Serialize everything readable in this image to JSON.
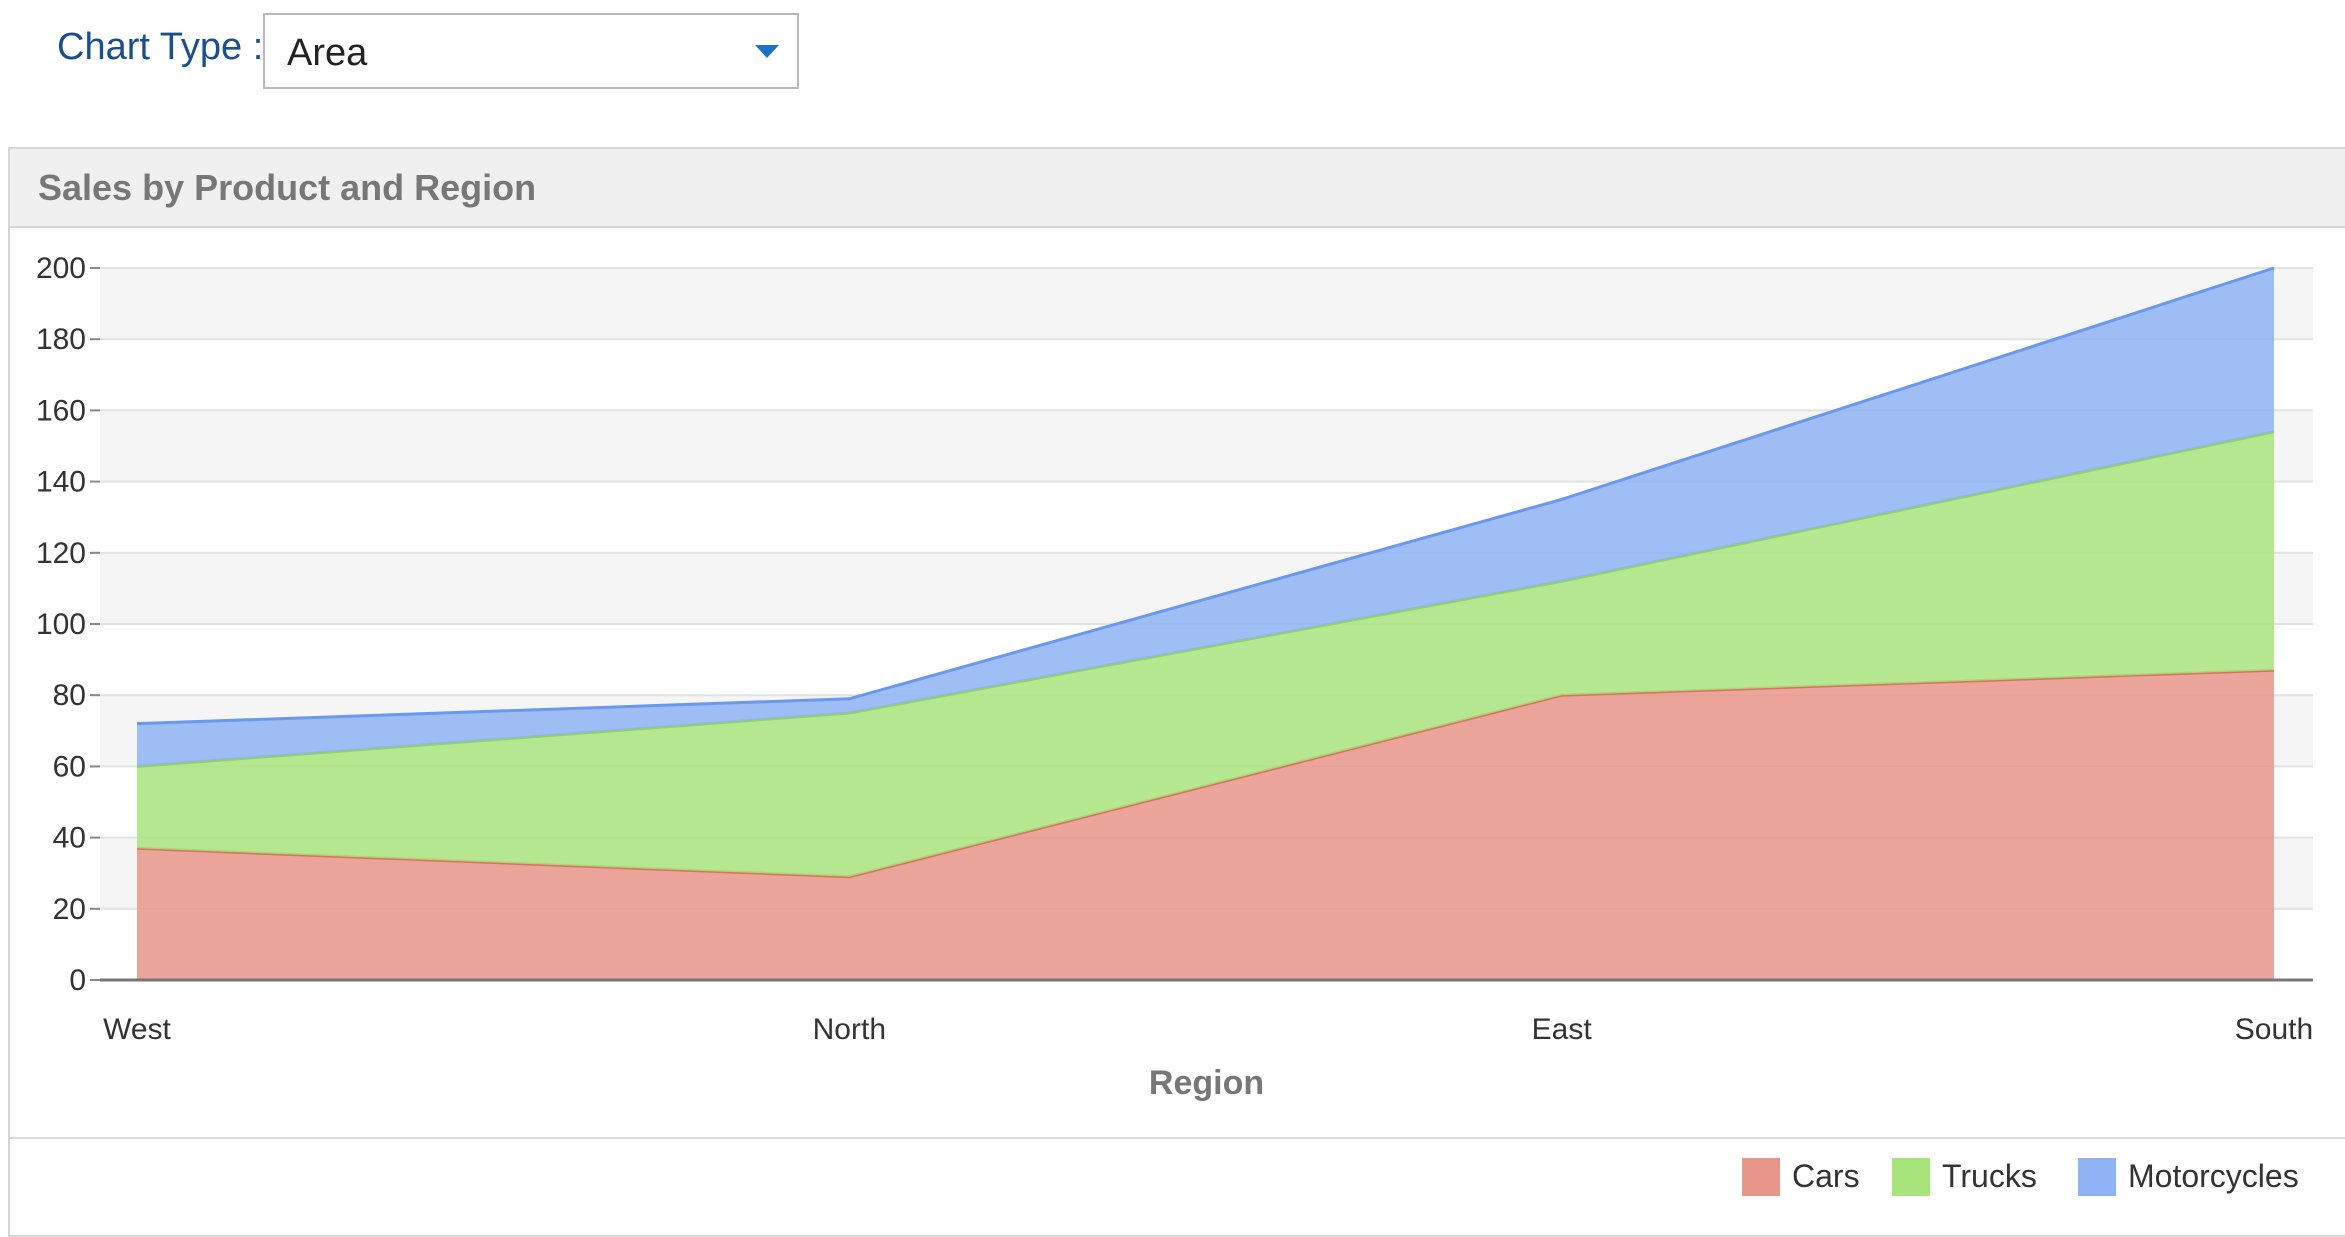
{
  "toolbar": {
    "chart_type_label": "Chart Type :",
    "chart_type_value": "Area"
  },
  "panel": {
    "title": "Sales by Product and Region"
  },
  "colors": {
    "Cars": "#e8958a",
    "Trucks": "#a8e47c",
    "Motorcycles": "#8fb3f5",
    "Cars_line": "#d9735f",
    "Trucks_line": "#8fd45b",
    "Motorcycles_line": "#6a98ee"
  },
  "chart_data": {
    "type": "area",
    "stacked": true,
    "title": "Sales by Product and Region",
    "xlabel": "Region",
    "ylabel": "",
    "categories": [
      "West",
      "North",
      "East",
      "South"
    ],
    "ylim": [
      0,
      200
    ],
    "yticks": [
      0,
      20,
      40,
      60,
      80,
      100,
      120,
      140,
      160,
      180,
      200
    ],
    "grid": true,
    "legend_position": "bottom-right",
    "series": [
      {
        "name": "Cars",
        "values": [
          37,
          29,
          80,
          87
        ]
      },
      {
        "name": "Trucks",
        "values": [
          23,
          46,
          32,
          67
        ]
      },
      {
        "name": "Motorcycles",
        "values": [
          12,
          4,
          23,
          46
        ]
      }
    ]
  }
}
